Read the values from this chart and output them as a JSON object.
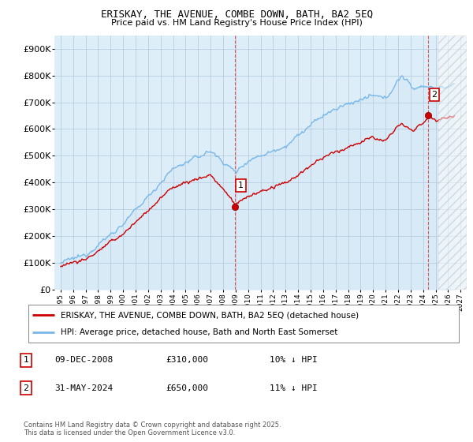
{
  "title": "ERISKAY, THE AVENUE, COMBE DOWN, BATH, BA2 5EQ",
  "subtitle": "Price paid vs. HM Land Registry's House Price Index (HPI)",
  "ylabel_ticks": [
    "£0",
    "£100K",
    "£200K",
    "£300K",
    "£400K",
    "£500K",
    "£600K",
    "£700K",
    "£800K",
    "£900K"
  ],
  "ytick_values": [
    0,
    100000,
    200000,
    300000,
    400000,
    500000,
    600000,
    700000,
    800000,
    900000
  ],
  "ylim": [
    0,
    950000
  ],
  "xlim_start": 1994.5,
  "xlim_end": 2027.5,
  "hpi_color": "#7ab8e8",
  "sale_color": "#cc0000",
  "hpi_fill_color": "#d6e8f7",
  "vline_color": "#dd4444",
  "marker1_x": 2008.93,
  "marker1_y": 310000,
  "marker2_x": 2024.42,
  "marker2_y": 650000,
  "legend_line1": "ERISKAY, THE AVENUE, COMBE DOWN, BATH, BA2 5EQ (detached house)",
  "legend_line2": "HPI: Average price, detached house, Bath and North East Somerset",
  "table_row1_num": "1",
  "table_row1_date": "09-DEC-2008",
  "table_row1_price": "£310,000",
  "table_row1_hpi": "10% ↓ HPI",
  "table_row2_num": "2",
  "table_row2_date": "31-MAY-2024",
  "table_row2_price": "£650,000",
  "table_row2_hpi": "11% ↓ HPI",
  "footnote": "Contains HM Land Registry data © Crown copyright and database right 2025.\nThis data is licensed under the Open Government Licence v3.0.",
  "background_color": "#ffffff",
  "chart_bg_color": "#ddeef8",
  "grid_color": "#b0c8dc"
}
